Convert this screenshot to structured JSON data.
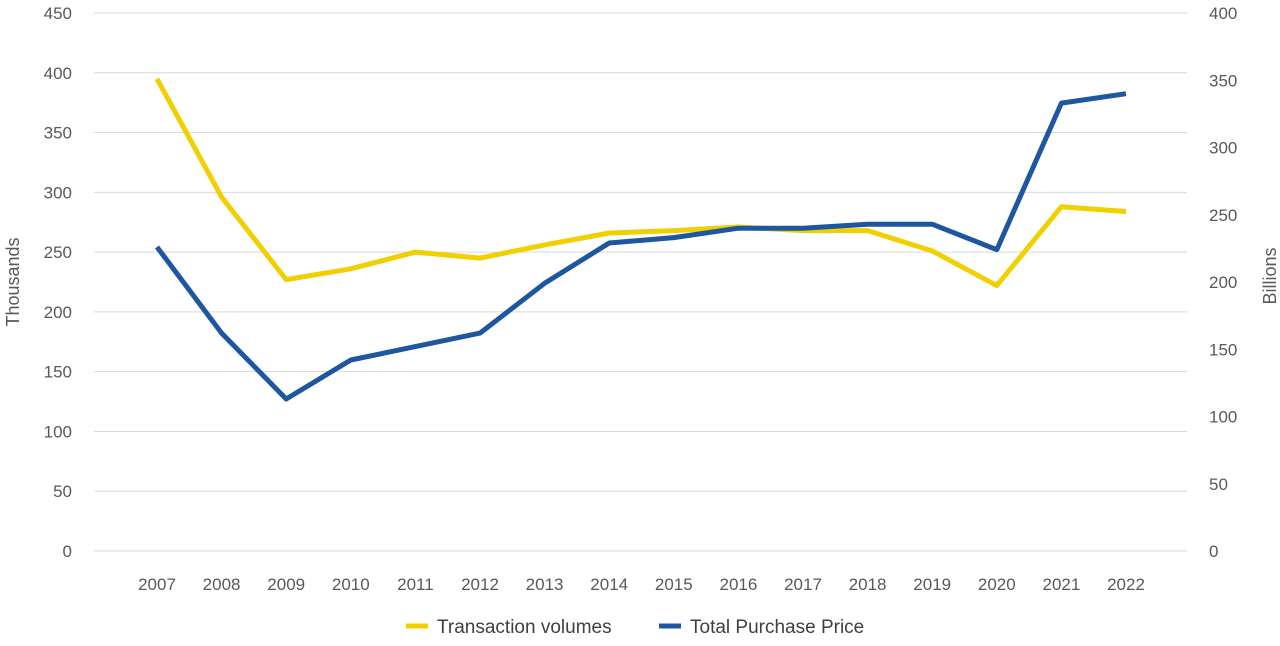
{
  "chart_data": {
    "type": "line",
    "categories": [
      "2007",
      "2008",
      "2009",
      "2010",
      "2011",
      "2012",
      "2013",
      "2014",
      "2015",
      "2016",
      "2017",
      "2018",
      "2019",
      "2020",
      "2021",
      "2022"
    ],
    "series": [
      {
        "name": "Transaction volumes",
        "axis": "left",
        "color": "#F0D000",
        "values": [
          395,
          296,
          227,
          236,
          250,
          245,
          256,
          266,
          268,
          271,
          268,
          268,
          251,
          222,
          288,
          284
        ]
      },
      {
        "name": "Total Purchase Price",
        "axis": "right",
        "color": "#1E56A0",
        "values": [
          226,
          162,
          113,
          142,
          152,
          162,
          199,
          229,
          233,
          240,
          240,
          243,
          243,
          224,
          333,
          340
        ]
      }
    ],
    "yleft": {
      "label": "Thousands",
      "min": 0,
      "max": 450,
      "step": 50
    },
    "yright": {
      "label": "Billions",
      "min": 0,
      "max": 400,
      "step": 50
    },
    "grid": true,
    "legend_position": "bottom",
    "gridline_color": "#D9D9D9"
  }
}
